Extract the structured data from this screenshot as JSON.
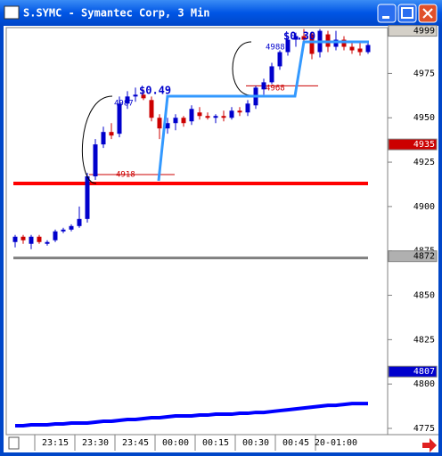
{
  "window_title": "S.SYMC - Symantec Corp, 3 Min",
  "chart_data": {
    "type": "candlestick",
    "categories": [
      null,
      null,
      null,
      null,
      null,
      "23:15",
      null,
      null,
      null,
      null,
      "23:30",
      null,
      null,
      null,
      null,
      "23:45",
      null,
      null,
      null,
      null,
      "00:00",
      null,
      null,
      null,
      null,
      "00:15",
      null,
      null,
      null,
      null,
      "00:30",
      null,
      null,
      null,
      null,
      "00:45",
      null,
      null,
      null,
      null,
      "20-01:00",
      null,
      null,
      null,
      null
    ],
    "open": [
      4880,
      4883,
      4879,
      4883,
      4879,
      4881,
      4886,
      4887,
      4889,
      4893,
      4917,
      4935,
      4942,
      4941,
      4958,
      4962,
      4963,
      4960,
      4950,
      4944,
      4947,
      4950,
      4948,
      4953,
      4951,
      4950,
      4951,
      4950,
      4954,
      4953,
      4957,
      4966,
      4970,
      4979,
      4987,
      4994,
      4996,
      4997,
      4987,
      4997,
      4990,
      4994,
      4990,
      4989,
      4987
    ],
    "high": [
      4884,
      4884,
      4884,
      4884,
      4881,
      4887,
      4888,
      4890,
      4900,
      4919,
      4938,
      4945,
      4947,
      4962,
      4965,
      4967,
      4966,
      4962,
      4952,
      4950,
      4952,
      4951,
      4957,
      4956,
      4953,
      4952,
      4954,
      4956,
      4956,
      4960,
      4968,
      4972,
      4981,
      4988,
      4996,
      4998,
      5000,
      4998,
      5000,
      4999,
      4999,
      4996,
      4993,
      4993,
      4992
    ],
    "low": [
      4877,
      4879,
      4876,
      4879,
      4878,
      4880,
      4885,
      4886,
      4888,
      4891,
      4915,
      4933,
      4938,
      4939,
      4955,
      4959,
      4960,
      4948,
      4938,
      4941,
      4943,
      4945,
      4946,
      4949,
      4949,
      4947,
      4948,
      4949,
      4951,
      4951,
      4955,
      4963,
      4969,
      4977,
      4985,
      4990,
      4992,
      4983,
      4984,
      4987,
      4988,
      4988,
      4986,
      4985,
      4986
    ],
    "close": [
      4883,
      4881,
      4883,
      4880,
      4880,
      4886,
      4887,
      4889,
      4893,
      4917,
      4935,
      4942,
      4940,
      4958,
      4962,
      4963,
      4961,
      4950,
      4944,
      4947,
      4950,
      4947,
      4955,
      4951,
      4950,
      4951,
      4950,
      4954,
      4953,
      4958,
      4967,
      4970,
      4979,
      4987,
      4994,
      4996,
      4994,
      4986,
      4999,
      4990,
      4994,
      4990,
      4988,
      4987,
      4991
    ],
    "up_color": "#0000cc",
    "down_color": "#cc0000",
    "moving_average": {
      "color": "#0000ff",
      "values": [
        4776.5,
        4776.5,
        4777,
        4777,
        4777,
        4777.5,
        4777.5,
        4778,
        4778,
        4778,
        4778.5,
        4779,
        4779,
        4779.5,
        4780,
        4780,
        4780.5,
        4781,
        4781,
        4781.5,
        4782,
        4782,
        4782,
        4782.5,
        4782.5,
        4783,
        4783,
        4783,
        4783.5,
        4783.5,
        4784,
        4784,
        4784.5,
        4785,
        4785.5,
        4786,
        4786.5,
        4787,
        4787.5,
        4788,
        4788,
        4788.5,
        4789,
        4789,
        4789
      ]
    },
    "levels": [
      {
        "value": 4913,
        "color": "#ff0000"
      },
      {
        "value": 4871,
        "color": "#808080"
      }
    ],
    "price_tags": [
      {
        "value": 4999,
        "color": "#d4d0c8"
      },
      {
        "value": 4935,
        "color": "#cc0000"
      },
      {
        "value": 4872,
        "color": "#b0b0b0"
      },
      {
        "value": 4807,
        "color": "#0000cc"
      }
    ],
    "annotations": {
      "gain1": "$0.49",
      "gain2": "$0.30",
      "high1": 4987,
      "low1": 4918,
      "high2": 4988,
      "low2": 4968
    },
    "ylim": [
      4775,
      5000
    ],
    "yticks": [
      4775,
      4800,
      4825,
      4850,
      4875,
      4900,
      4925,
      4950,
      4975
    ]
  }
}
